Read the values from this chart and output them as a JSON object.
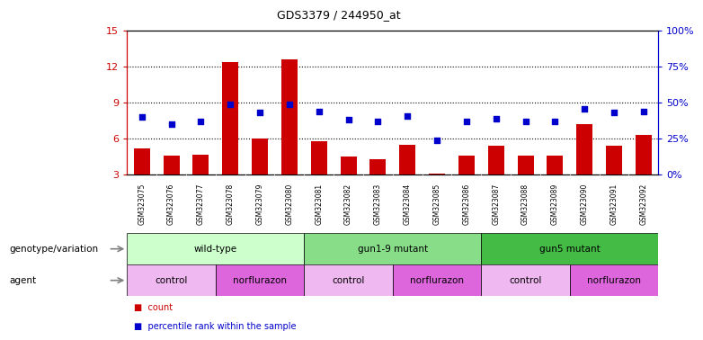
{
  "title": "GDS3379 / 244950_at",
  "samples": [
    "GSM323075",
    "GSM323076",
    "GSM323077",
    "GSM323078",
    "GSM323079",
    "GSM323080",
    "GSM323081",
    "GSM323082",
    "GSM323083",
    "GSM323084",
    "GSM323085",
    "GSM323086",
    "GSM323087",
    "GSM323088",
    "GSM323089",
    "GSM323090",
    "GSM323091",
    "GSM323092"
  ],
  "counts": [
    5.2,
    4.6,
    4.7,
    12.4,
    6.0,
    12.6,
    5.8,
    4.5,
    4.3,
    5.5,
    3.1,
    4.6,
    5.4,
    4.6,
    4.6,
    7.2,
    5.4,
    6.3
  ],
  "percentiles": [
    40,
    35,
    37,
    49,
    43,
    49,
    44,
    38,
    37,
    41,
    24,
    37,
    39,
    37,
    37,
    46,
    43,
    44
  ],
  "ylim_left": [
    3,
    15
  ],
  "ylim_right": [
    0,
    100
  ],
  "yticks_left": [
    3,
    6,
    9,
    12,
    15
  ],
  "yticks_right": [
    0,
    25,
    50,
    75,
    100
  ],
  "bar_color": "#cc0000",
  "dot_color": "#0000cc",
  "genotype_groups": [
    {
      "label": "wild-type",
      "start": 0,
      "end": 5,
      "color": "#ccffcc"
    },
    {
      "label": "gun1-9 mutant",
      "start": 6,
      "end": 11,
      "color": "#88dd88"
    },
    {
      "label": "gun5 mutant",
      "start": 12,
      "end": 17,
      "color": "#44bb44"
    }
  ],
  "agent_groups": [
    {
      "label": "control",
      "start": 0,
      "end": 2,
      "color": "#f0b8f0"
    },
    {
      "label": "norflurazon",
      "start": 3,
      "end": 5,
      "color": "#dd66dd"
    },
    {
      "label": "control",
      "start": 6,
      "end": 8,
      "color": "#f0b8f0"
    },
    {
      "label": "norflurazon",
      "start": 9,
      "end": 11,
      "color": "#dd66dd"
    },
    {
      "label": "control",
      "start": 12,
      "end": 14,
      "color": "#f0b8f0"
    },
    {
      "label": "norflurazon",
      "start": 15,
      "end": 17,
      "color": "#dd66dd"
    }
  ],
  "legend_count_label": "count",
  "legend_percentile_label": "percentile rank within the sample",
  "genotype_label": "genotype/variation",
  "agent_label": "agent",
  "left_axis_color": "#cc0000",
  "right_axis_color": "#0000cc",
  "tick_label_bg": "#d8d8d8"
}
